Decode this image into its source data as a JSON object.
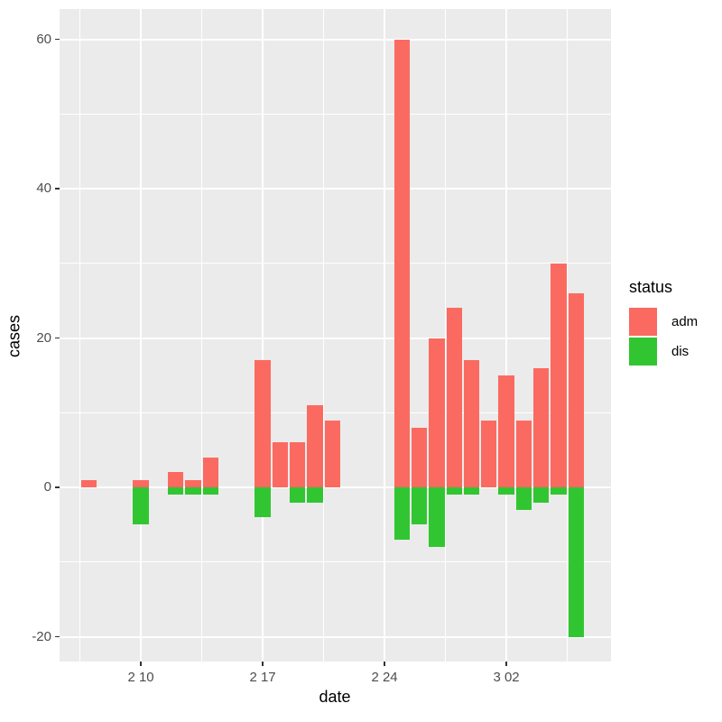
{
  "chart_data": {
    "type": "bar",
    "stacked": true,
    "title": "",
    "xlabel": "date",
    "ylabel": "cases",
    "legend_title": "status",
    "legend_position": "right",
    "grid": true,
    "panel_bg": "#EBEBEB",
    "grid_color": "#FFFFFF",
    "tick_text_color": "#4D4D4D",
    "categories": [
      "02-07",
      "02-10",
      "02-12",
      "02-13",
      "02-14",
      "02-17",
      "02-18",
      "02-19",
      "02-20",
      "02-21",
      "02-25",
      "02-26",
      "02-27",
      "02-28",
      "02-29",
      "03-01",
      "03-02",
      "03-03",
      "03-04",
      "03-05",
      "03-06"
    ],
    "x_day_index": [
      0,
      3,
      5,
      6,
      7,
      10,
      11,
      12,
      13,
      14,
      18,
      19,
      20,
      21,
      22,
      23,
      24,
      25,
      26,
      27,
      28
    ],
    "series": [
      {
        "name": "adm",
        "color": "#FB6A61",
        "values": [
          1,
          1,
          2,
          1,
          4,
          17,
          6,
          6,
          11,
          9,
          60,
          8,
          20,
          24,
          17,
          9,
          15,
          9,
          16,
          30,
          26
        ]
      },
      {
        "name": "dis",
        "color": "#31C631",
        "values": [
          0,
          -5,
          -1,
          -1,
          -1,
          -4,
          0,
          -2,
          -2,
          0,
          -7,
          -5,
          -8,
          -1,
          -1,
          0,
          -1,
          -3,
          -2,
          -1,
          -20
        ]
      }
    ],
    "x_ticks": [
      {
        "day": 3,
        "label": "2 10"
      },
      {
        "day": 10,
        "label": "2 17"
      },
      {
        "day": 17,
        "label": "2 24"
      },
      {
        "day": 24,
        "label": "3 02"
      }
    ],
    "y_ticks": [
      {
        "value": 60,
        "label": "60"
      },
      {
        "value": 40,
        "label": "40"
      },
      {
        "value": 20,
        "label": "20"
      },
      {
        "value": 0,
        "label": "0"
      },
      {
        "value": -20,
        "label": "-20"
      }
    ],
    "ylim": [
      -23.3,
      64.0
    ],
    "xlim_days": [
      -1.61,
      30.05
    ]
  }
}
